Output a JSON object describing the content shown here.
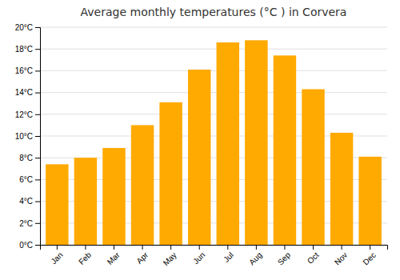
{
  "chart_data": {
    "type": "bar",
    "title": "Average monthly temperatures (°C ) in Corvera",
    "categories": [
      "Jan",
      "Feb",
      "Mar",
      "Apr",
      "May",
      "Jun",
      "Jul",
      "Aug",
      "Sep",
      "Oct",
      "Nov",
      "Dec"
    ],
    "values": [
      7.4,
      8.0,
      8.9,
      11.0,
      13.1,
      16.1,
      18.6,
      18.8,
      17.4,
      14.3,
      10.3,
      8.1
    ],
    "color": "#FFAA00",
    "ylim": [
      0,
      20
    ],
    "yticks": [
      {
        "value": 0,
        "label": "0°C"
      },
      {
        "value": 2,
        "label": "2°C"
      },
      {
        "value": 4,
        "label": "4°C"
      },
      {
        "value": 6,
        "label": "6°C"
      },
      {
        "value": 8,
        "label": "8°C"
      },
      {
        "value": 10,
        "label": "10°C"
      },
      {
        "value": 12,
        "label": "12°C"
      },
      {
        "value": 14,
        "label": "14°C"
      },
      {
        "value": 16,
        "label": "16°C"
      },
      {
        "value": 18,
        "label": "18°C"
      },
      {
        "value": 20,
        "label": "20°C"
      }
    ],
    "grid": true
  }
}
